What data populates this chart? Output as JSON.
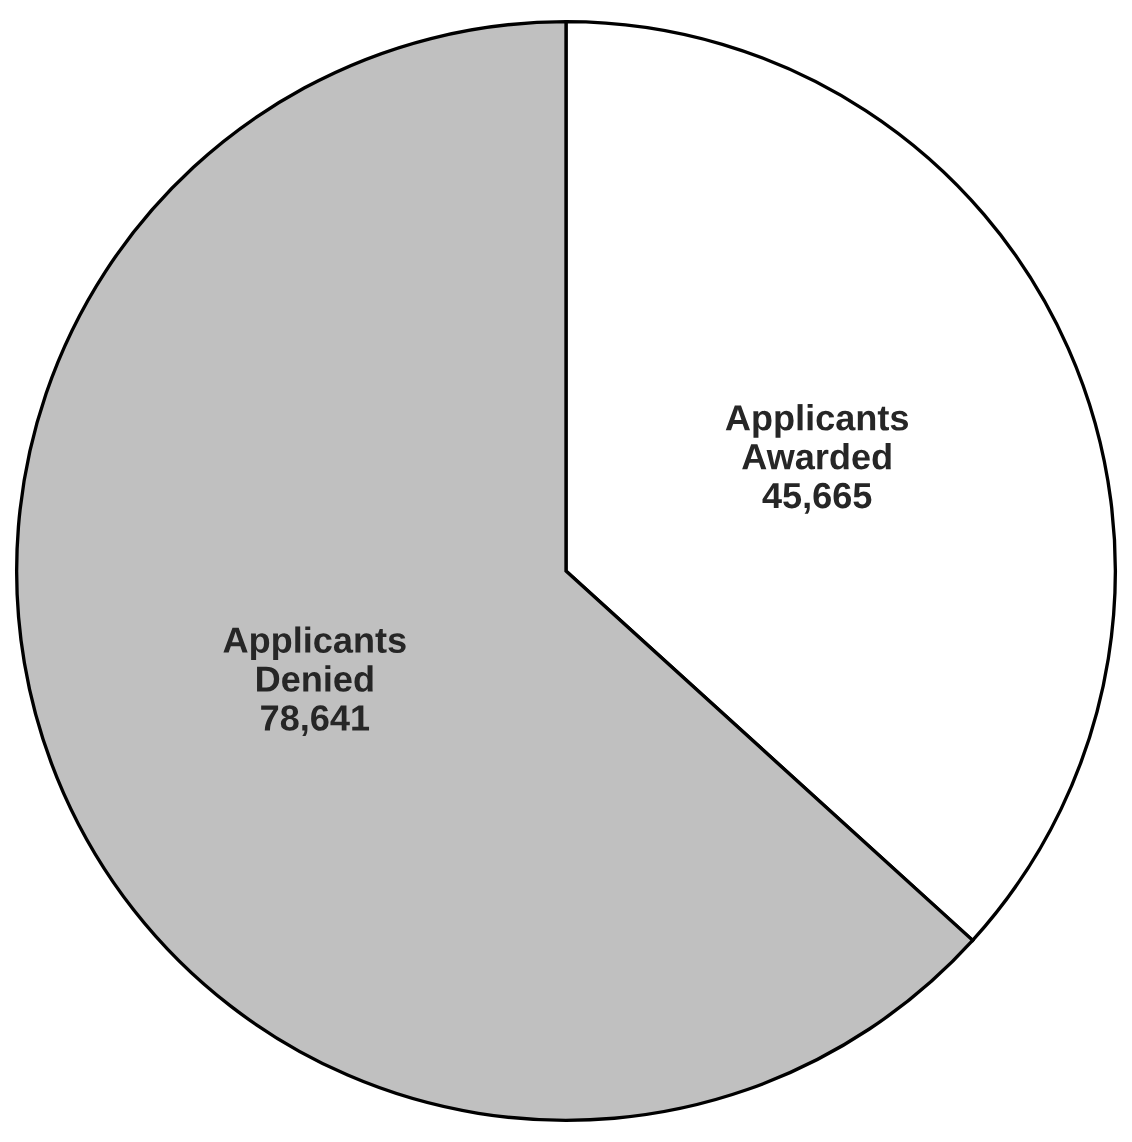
{
  "chart_data": {
    "type": "pie",
    "categories": [
      "Applicants\nAwarded",
      "Applicants\nDenied"
    ],
    "values": [
      45665,
      78641
    ],
    "value_labels": [
      "45,665",
      "78,641"
    ],
    "colors": [
      "#ffffff",
      "#c0c0c0"
    ]
  }
}
